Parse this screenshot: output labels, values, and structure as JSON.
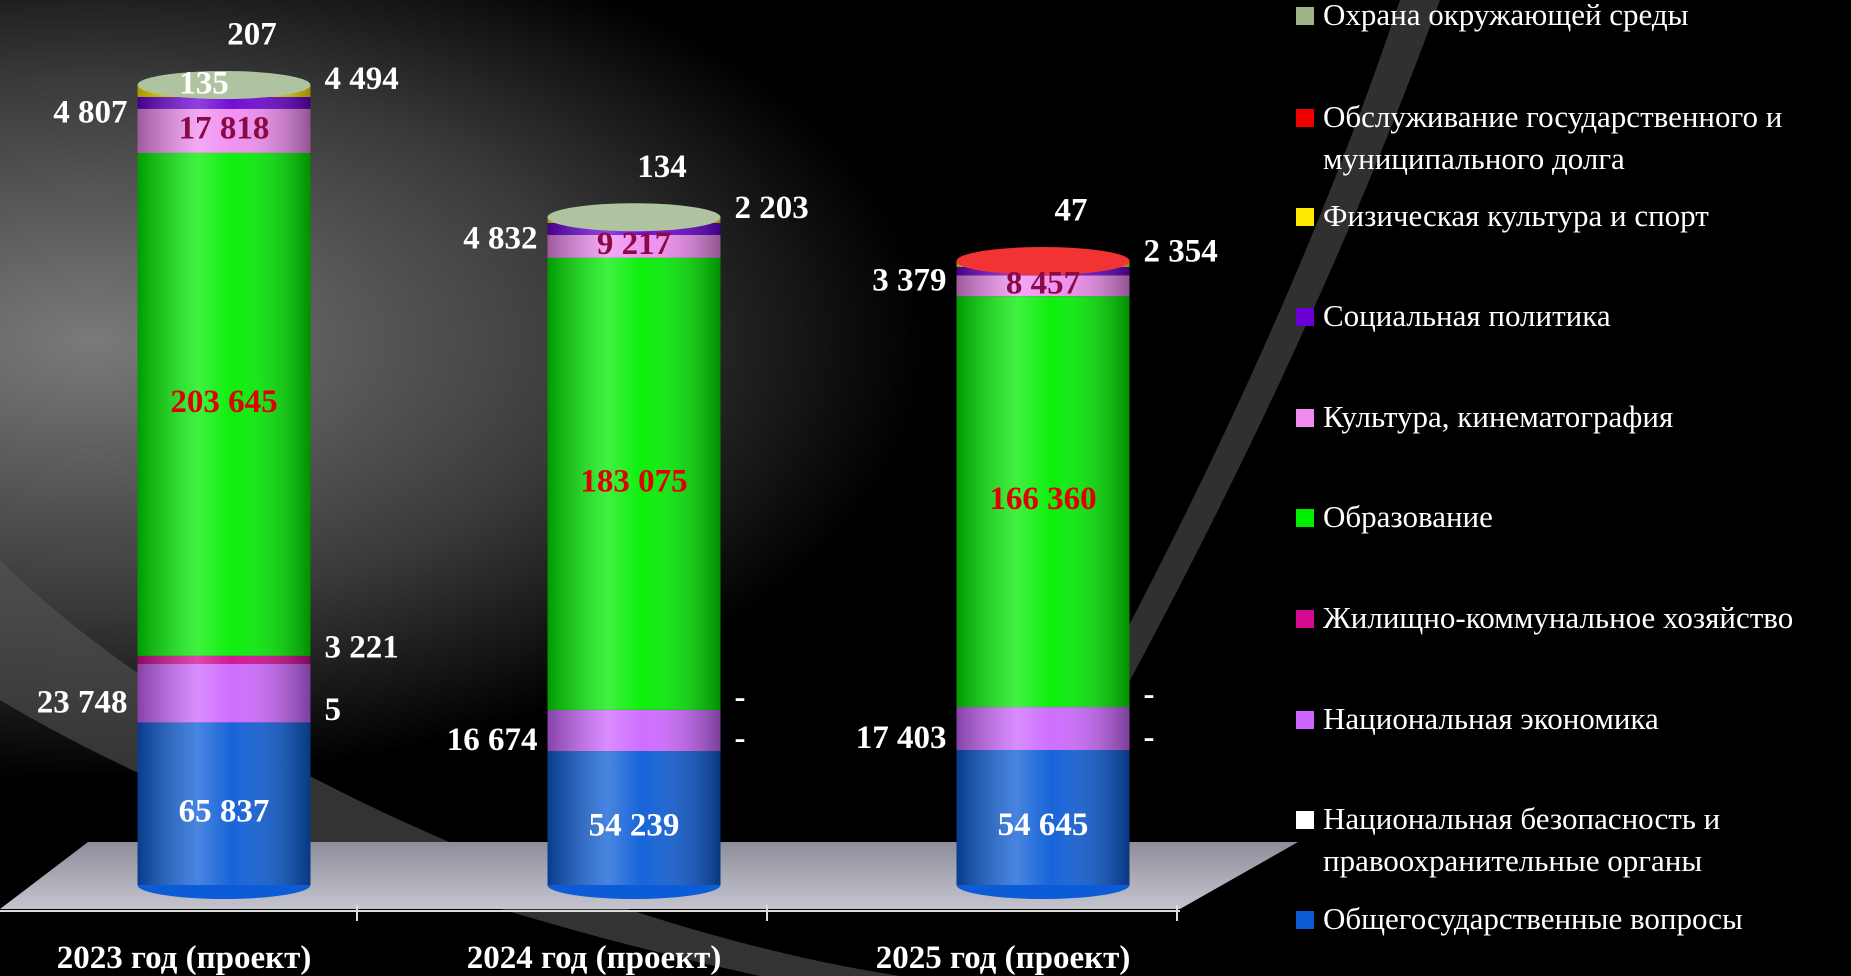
{
  "chart_data": {
    "type": "stacked-cylinder",
    "categories": [
      "2023 год (проект)",
      "2024 год (проект)",
      "2025 год (проект)"
    ],
    "series": [
      {
        "name": "Общегосударственные вопросы",
        "color": "#0b5cd6",
        "values": [
          65837,
          54239,
          54645
        ]
      },
      {
        "name": "Национальная безопасность и правоохранительные органы",
        "color": "#ffffff",
        "values": [
          5,
          0,
          0
        ],
        "value_labels": [
          "5",
          "-",
          "-"
        ]
      },
      {
        "name": "Национальная экономика",
        "color": "#cc66ff",
        "values": [
          23748,
          16674,
          17403
        ]
      },
      {
        "name": "Жилищно-коммунальное хозяйство",
        "color": "#d4098f",
        "values": [
          3221,
          0,
          0
        ],
        "value_labels": [
          "3 221",
          "-",
          "-"
        ]
      },
      {
        "name": "Образование",
        "color": "#00ee00",
        "values": [
          203645,
          183075,
          166360
        ]
      },
      {
        "name": "Культура, кинематография",
        "color": "#f08cf0",
        "values": [
          17818,
          9217,
          8457
        ]
      },
      {
        "name": "Социальная политика",
        "color": "#6a00d4",
        "values": [
          4807,
          4832,
          3379
        ]
      },
      {
        "name": "Физическая культура и спорт",
        "color": "#ffe800",
        "values": [
          4494,
          2203,
          2354
        ]
      },
      {
        "name": "Обслуживание государственного и муниципального долга",
        "color": "#ee0000",
        "values": [
          135,
          null,
          47
        ]
      },
      {
        "name": "Охрана окружающей среды",
        "color": "#9db489",
        "values": [
          207,
          134,
          null
        ]
      }
    ]
  }
}
